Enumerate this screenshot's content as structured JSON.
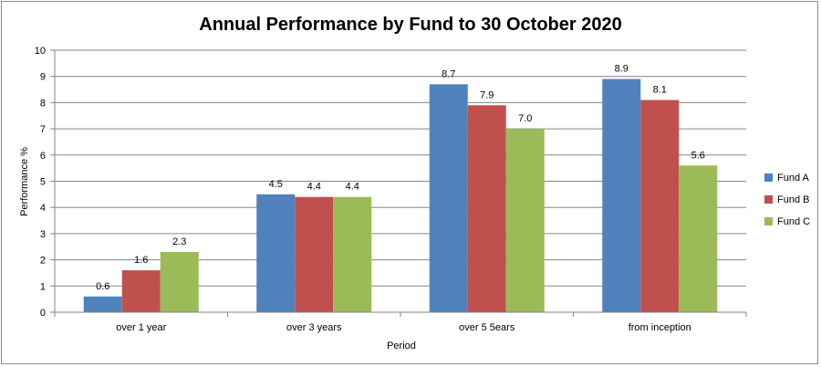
{
  "chart_data": {
    "type": "bar",
    "title": "Annual Performance by Fund to 30 October 2020",
    "xlabel": "Period",
    "ylabel": "Performance %",
    "ylim": [
      0,
      10
    ],
    "yticks": [
      "0",
      "1",
      "2",
      "3",
      "4",
      "5",
      "6",
      "7",
      "8",
      "9",
      "10"
    ],
    "grid": true,
    "legend_position": "right",
    "categories": [
      "over 1 year",
      "over 3 years",
      "over 5 5ears",
      "from inception"
    ],
    "series": [
      {
        "name": "Fund A",
        "color": "#4f81bd",
        "values": [
          0.6,
          4.5,
          8.7,
          8.9
        ],
        "labels": [
          "0.6",
          "4.5",
          "8.7",
          "8.9"
        ]
      },
      {
        "name": "Fund B",
        "color": "#c0504d",
        "values": [
          1.6,
          4.4,
          7.9,
          8.1
        ],
        "labels": [
          "1.6",
          "4.4",
          "7.9",
          "8.1"
        ]
      },
      {
        "name": "Fund C",
        "color": "#9bbb59",
        "values": [
          2.3,
          4.4,
          7.0,
          5.6
        ],
        "labels": [
          "2.3",
          "4.4",
          "7.0",
          "5.6"
        ]
      }
    ]
  }
}
